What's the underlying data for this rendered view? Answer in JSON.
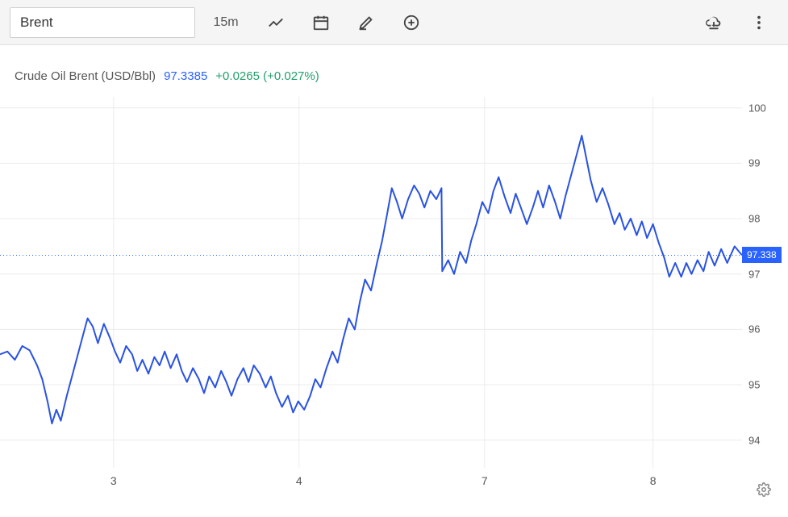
{
  "toolbar": {
    "symbol": "Brent",
    "interval": "15m"
  },
  "legend": {
    "name": "Crude Oil Brent (USD/Bbl)",
    "price": "97.3385",
    "change": "+0.0265 (+0.027%)"
  },
  "chart": {
    "type": "line",
    "line_color": "#2952e3",
    "line_width": 2,
    "background_color": "#ffffff",
    "grid_color": "#ececec",
    "ref_line_color": "#2962ff",
    "price_tag_bg": "#2962ff",
    "ylim": [
      93.5,
      100.2
    ],
    "y_ticks": [
      94,
      95,
      96,
      97,
      98,
      99,
      100
    ],
    "current_price": 97.338,
    "price_tag": "97.338",
    "x_ticks": [
      {
        "x": 0.153,
        "label": "3"
      },
      {
        "x": 0.403,
        "label": "4"
      },
      {
        "x": 0.653,
        "label": "7"
      },
      {
        "x": 0.88,
        "label": "8"
      }
    ],
    "series": [
      {
        "x": 0.0,
        "y": 95.55
      },
      {
        "x": 0.01,
        "y": 95.6
      },
      {
        "x": 0.02,
        "y": 95.45
      },
      {
        "x": 0.03,
        "y": 95.7
      },
      {
        "x": 0.04,
        "y": 95.62
      },
      {
        "x": 0.05,
        "y": 95.35
      },
      {
        "x": 0.057,
        "y": 95.1
      },
      {
        "x": 0.064,
        "y": 94.7
      },
      {
        "x": 0.07,
        "y": 94.3
      },
      {
        "x": 0.076,
        "y": 94.55
      },
      {
        "x": 0.082,
        "y": 94.35
      },
      {
        "x": 0.09,
        "y": 94.8
      },
      {
        "x": 0.098,
        "y": 95.2
      },
      {
        "x": 0.105,
        "y": 95.55
      },
      {
        "x": 0.112,
        "y": 95.9
      },
      {
        "x": 0.118,
        "y": 96.2
      },
      {
        "x": 0.125,
        "y": 96.05
      },
      {
        "x": 0.132,
        "y": 95.75
      },
      {
        "x": 0.14,
        "y": 96.1
      },
      {
        "x": 0.148,
        "y": 95.85
      },
      {
        "x": 0.155,
        "y": 95.6
      },
      {
        "x": 0.162,
        "y": 95.4
      },
      {
        "x": 0.17,
        "y": 95.7
      },
      {
        "x": 0.178,
        "y": 95.55
      },
      {
        "x": 0.185,
        "y": 95.25
      },
      {
        "x": 0.192,
        "y": 95.45
      },
      {
        "x": 0.2,
        "y": 95.2
      },
      {
        "x": 0.208,
        "y": 95.5
      },
      {
        "x": 0.215,
        "y": 95.35
      },
      {
        "x": 0.222,
        "y": 95.6
      },
      {
        "x": 0.23,
        "y": 95.3
      },
      {
        "x": 0.238,
        "y": 95.55
      },
      {
        "x": 0.245,
        "y": 95.25
      },
      {
        "x": 0.252,
        "y": 95.05
      },
      {
        "x": 0.26,
        "y": 95.3
      },
      {
        "x": 0.268,
        "y": 95.1
      },
      {
        "x": 0.275,
        "y": 94.85
      },
      {
        "x": 0.282,
        "y": 95.15
      },
      {
        "x": 0.29,
        "y": 94.95
      },
      {
        "x": 0.298,
        "y": 95.25
      },
      {
        "x": 0.305,
        "y": 95.05
      },
      {
        "x": 0.312,
        "y": 94.8
      },
      {
        "x": 0.32,
        "y": 95.1
      },
      {
        "x": 0.328,
        "y": 95.3
      },
      {
        "x": 0.335,
        "y": 95.05
      },
      {
        "x": 0.342,
        "y": 95.35
      },
      {
        "x": 0.35,
        "y": 95.2
      },
      {
        "x": 0.358,
        "y": 94.95
      },
      {
        "x": 0.365,
        "y": 95.15
      },
      {
        "x": 0.372,
        "y": 94.85
      },
      {
        "x": 0.38,
        "y": 94.6
      },
      {
        "x": 0.388,
        "y": 94.8
      },
      {
        "x": 0.395,
        "y": 94.5
      },
      {
        "x": 0.402,
        "y": 94.7
      },
      {
        "x": 0.41,
        "y": 94.55
      },
      {
        "x": 0.418,
        "y": 94.8
      },
      {
        "x": 0.425,
        "y": 95.1
      },
      {
        "x": 0.432,
        "y": 94.95
      },
      {
        "x": 0.44,
        "y": 95.3
      },
      {
        "x": 0.448,
        "y": 95.6
      },
      {
        "x": 0.455,
        "y": 95.4
      },
      {
        "x": 0.462,
        "y": 95.8
      },
      {
        "x": 0.47,
        "y": 96.2
      },
      {
        "x": 0.478,
        "y": 96.0
      },
      {
        "x": 0.485,
        "y": 96.5
      },
      {
        "x": 0.492,
        "y": 96.9
      },
      {
        "x": 0.5,
        "y": 96.7
      },
      {
        "x": 0.508,
        "y": 97.2
      },
      {
        "x": 0.515,
        "y": 97.6
      },
      {
        "x": 0.522,
        "y": 98.1
      },
      {
        "x": 0.528,
        "y": 98.55
      },
      {
        "x": 0.535,
        "y": 98.3
      },
      {
        "x": 0.542,
        "y": 98.0
      },
      {
        "x": 0.55,
        "y": 98.35
      },
      {
        "x": 0.558,
        "y": 98.6
      },
      {
        "x": 0.565,
        "y": 98.45
      },
      {
        "x": 0.572,
        "y": 98.2
      },
      {
        "x": 0.58,
        "y": 98.5
      },
      {
        "x": 0.588,
        "y": 98.35
      },
      {
        "x": 0.595,
        "y": 98.55
      },
      {
        "x": 0.596,
        "y": 97.05
      },
      {
        "x": 0.604,
        "y": 97.25
      },
      {
        "x": 0.612,
        "y": 97.0
      },
      {
        "x": 0.62,
        "y": 97.4
      },
      {
        "x": 0.628,
        "y": 97.2
      },
      {
        "x": 0.635,
        "y": 97.6
      },
      {
        "x": 0.642,
        "y": 97.9
      },
      {
        "x": 0.65,
        "y": 98.3
      },
      {
        "x": 0.658,
        "y": 98.1
      },
      {
        "x": 0.665,
        "y": 98.5
      },
      {
        "x": 0.672,
        "y": 98.75
      },
      {
        "x": 0.68,
        "y": 98.4
      },
      {
        "x": 0.688,
        "y": 98.1
      },
      {
        "x": 0.695,
        "y": 98.45
      },
      {
        "x": 0.702,
        "y": 98.2
      },
      {
        "x": 0.71,
        "y": 97.9
      },
      {
        "x": 0.718,
        "y": 98.2
      },
      {
        "x": 0.725,
        "y": 98.5
      },
      {
        "x": 0.732,
        "y": 98.2
      },
      {
        "x": 0.74,
        "y": 98.6
      },
      {
        "x": 0.748,
        "y": 98.3
      },
      {
        "x": 0.755,
        "y": 98.0
      },
      {
        "x": 0.762,
        "y": 98.4
      },
      {
        "x": 0.77,
        "y": 98.8
      },
      {
        "x": 0.778,
        "y": 99.2
      },
      {
        "x": 0.784,
        "y": 99.5
      },
      {
        "x": 0.79,
        "y": 99.1
      },
      {
        "x": 0.796,
        "y": 98.7
      },
      {
        "x": 0.804,
        "y": 98.3
      },
      {
        "x": 0.812,
        "y": 98.55
      },
      {
        "x": 0.82,
        "y": 98.25
      },
      {
        "x": 0.828,
        "y": 97.9
      },
      {
        "x": 0.835,
        "y": 98.1
      },
      {
        "x": 0.842,
        "y": 97.8
      },
      {
        "x": 0.85,
        "y": 98.0
      },
      {
        "x": 0.858,
        "y": 97.7
      },
      {
        "x": 0.865,
        "y": 97.95
      },
      {
        "x": 0.872,
        "y": 97.65
      },
      {
        "x": 0.88,
        "y": 97.9
      },
      {
        "x": 0.888,
        "y": 97.55
      },
      {
        "x": 0.895,
        "y": 97.3
      },
      {
        "x": 0.902,
        "y": 96.95
      },
      {
        "x": 0.91,
        "y": 97.2
      },
      {
        "x": 0.918,
        "y": 96.95
      },
      {
        "x": 0.925,
        "y": 97.2
      },
      {
        "x": 0.932,
        "y": 97.0
      },
      {
        "x": 0.94,
        "y": 97.25
      },
      {
        "x": 0.948,
        "y": 97.05
      },
      {
        "x": 0.955,
        "y": 97.4
      },
      {
        "x": 0.963,
        "y": 97.15
      },
      {
        "x": 0.972,
        "y": 97.45
      },
      {
        "x": 0.98,
        "y": 97.2
      },
      {
        "x": 0.99,
        "y": 97.5
      },
      {
        "x": 1.0,
        "y": 97.34
      }
    ]
  }
}
